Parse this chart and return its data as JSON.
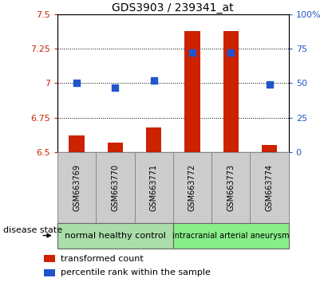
{
  "title": "GDS3903 / 239341_at",
  "samples": [
    "GSM663769",
    "GSM663770",
    "GSM663771",
    "GSM663772",
    "GSM663773",
    "GSM663774"
  ],
  "transformed_count": [
    6.62,
    6.57,
    6.68,
    7.38,
    7.38,
    6.55
  ],
  "percentile_rank": [
    50,
    47,
    52,
    72,
    72,
    49
  ],
  "ylim_left": [
    6.5,
    7.5
  ],
  "ylim_right": [
    0,
    100
  ],
  "yticks_left": [
    6.5,
    6.75,
    7.0,
    7.25,
    7.5
  ],
  "yticks_right": [
    0,
    25,
    50,
    75,
    100
  ],
  "yticklabels_left": [
    "6.5",
    "6.75",
    "7",
    "7.25",
    "7.5"
  ],
  "yticklabels_right": [
    "0",
    "25",
    "50",
    "75",
    "100%"
  ],
  "bar_color": "#cc2200",
  "dot_color": "#2255cc",
  "group1_label": "normal healthy control",
  "group2_label": "intracranial arterial aneurysm",
  "group1_bg": "#aaddaa",
  "group2_bg": "#88ee88",
  "sample_bg": "#cccccc",
  "left_color": "#cc2200",
  "right_color": "#2255cc",
  "legend_bar_label": "transformed count",
  "legend_dot_label": "percentile rank within the sample",
  "disease_state_label": "disease state",
  "bar_width": 0.4,
  "dot_size": 35,
  "base_value": 6.5
}
